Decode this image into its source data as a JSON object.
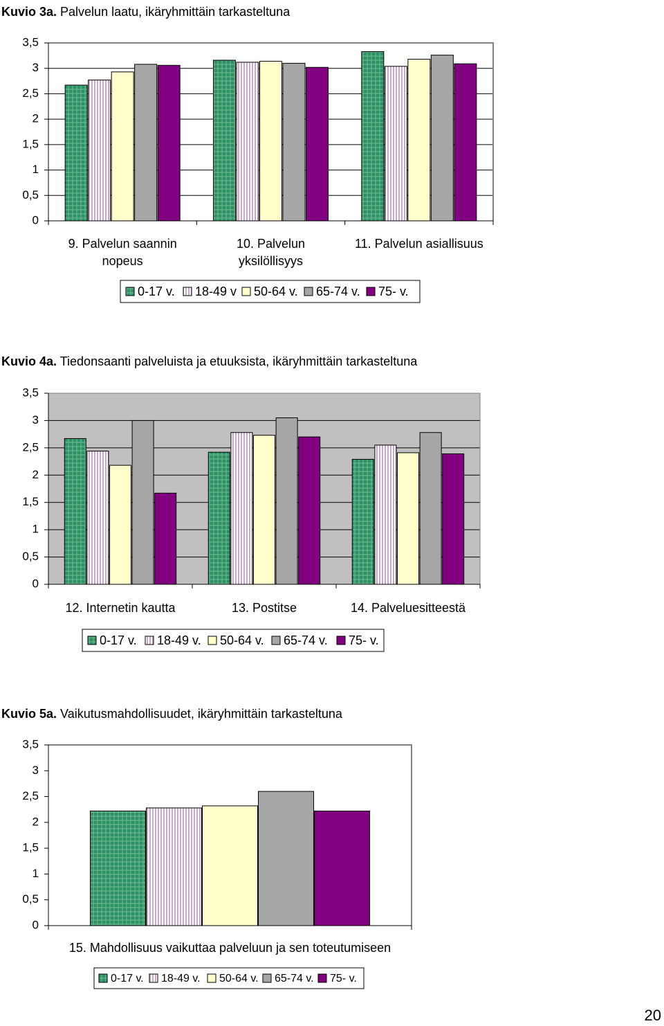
{
  "page": {
    "number": "20"
  },
  "colors": {
    "s1": "#2f8f65",
    "s2": "#ddc6da",
    "s3": "#ffffcc",
    "s4": "#a6a6a6",
    "s5": "#800080",
    "plot_bg_chart2": "#c0c0c0"
  },
  "chart_data": [
    {
      "type": "bar",
      "title_bold": "Kuvio 3a.",
      "title_rest": " Palvelun laatu, ikäryhmittäin tarkasteltuna",
      "categories": [
        [
          "9. Palvelun saannin",
          "nopeus"
        ],
        [
          "10. Palvelun",
          "yksilöllisyys"
        ],
        [
          "11. Palvelun asiallisuus"
        ]
      ],
      "yticks": [
        "0",
        "0,5",
        "1",
        "1,5",
        "2",
        "2,5",
        "3",
        "3,5"
      ],
      "ylim": [
        0,
        3.5
      ],
      "grid": true,
      "legend_position": "bottom",
      "legend": [
        "0-17 v.",
        "18-49 v",
        "50-64 v.",
        "65-74 v.",
        "75- v."
      ],
      "series": [
        {
          "name": "0-17 v.",
          "values": [
            2.67,
            3.16,
            3.33
          ]
        },
        {
          "name": "18-49 v",
          "values": [
            2.77,
            3.12,
            3.04
          ]
        },
        {
          "name": "50-64 v.",
          "values": [
            2.93,
            3.14,
            3.18
          ]
        },
        {
          "name": "65-74 v.",
          "values": [
            3.08,
            3.1,
            3.26
          ]
        },
        {
          "name": "75- v.",
          "values": [
            3.06,
            3.02,
            3.09
          ]
        }
      ]
    },
    {
      "type": "bar",
      "title_bold": "Kuvio 4a.",
      "title_rest": " Tiedonsaanti palveluista ja etuuksista, ikäryhmittäin tarkasteltuna",
      "categories": [
        [
          "12. Internetin kautta"
        ],
        [
          "13. Postitse"
        ],
        [
          "14. Palveluesitteestä"
        ]
      ],
      "yticks": [
        "0",
        "0,5",
        "1",
        "1,5",
        "2",
        "2,5",
        "3",
        "3,5"
      ],
      "ylim": [
        0,
        3.5
      ],
      "grid": true,
      "legend_position": "bottom",
      "legend": [
        "0-17 v.",
        "18-49 v.",
        "50-64 v.",
        "65-74 v.",
        "75- v."
      ],
      "series": [
        {
          "name": "0-17 v.",
          "values": [
            2.67,
            2.42,
            2.29
          ]
        },
        {
          "name": "18-49 v.",
          "values": [
            2.44,
            2.78,
            2.55
          ]
        },
        {
          "name": "50-64 v.",
          "values": [
            2.18,
            2.73,
            2.41
          ]
        },
        {
          "name": "65-74 v.",
          "values": [
            3.0,
            3.05,
            2.78
          ]
        },
        {
          "name": "75- v.",
          "values": [
            1.67,
            2.7,
            2.39
          ]
        }
      ]
    },
    {
      "type": "bar",
      "title_bold": "Kuvio 5a.",
      "title_rest": " Vaikutusmahdollisuudet, ikäryhmittäin tarkasteltuna",
      "categories": [
        [
          "15. Mahdollisuus vaikuttaa palveluun ja sen toteutumiseen"
        ]
      ],
      "yticks": [
        "0",
        "0,5",
        "1",
        "1,5",
        "2",
        "2,5",
        "3",
        "3,5"
      ],
      "ylim": [
        0,
        3.5
      ],
      "grid": false,
      "legend_position": "bottom",
      "legend": [
        "0-17 v.",
        "18-49 v.",
        "50-64 v.",
        "65-74 v.",
        "75- v."
      ],
      "series": [
        {
          "name": "0-17 v.",
          "values": [
            2.22
          ]
        },
        {
          "name": "18-49 v.",
          "values": [
            2.28
          ]
        },
        {
          "name": "50-64 v.",
          "values": [
            2.32
          ]
        },
        {
          "name": "65-74 v.",
          "values": [
            2.6
          ]
        },
        {
          "name": "75- v.",
          "values": [
            2.22
          ]
        }
      ]
    }
  ]
}
